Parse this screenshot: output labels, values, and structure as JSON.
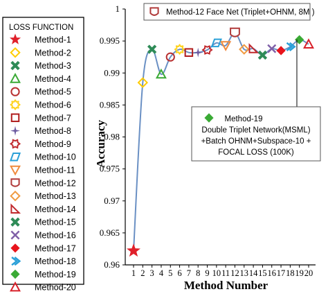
{
  "chart_data": {
    "type": "line",
    "title": "",
    "xlabel": "Method Number",
    "ylabel": "Accuracy",
    "ylim": [
      0.96,
      1.0
    ],
    "yticks": [
      "0.96",
      "0.965",
      "0.97",
      "0.975",
      "0.98",
      "0.985",
      "0.99",
      "0.995",
      "1"
    ],
    "x": [
      "1",
      "2",
      "3",
      "4",
      "5",
      "6",
      "7",
      "8",
      "9",
      "10",
      "11",
      "12",
      "13",
      "14",
      "15",
      "16",
      "17",
      "18",
      "19",
      "20"
    ],
    "values": [
      0.9622,
      0.9885,
      0.9937,
      0.9898,
      0.9925,
      0.9937,
      0.9932,
      0.9932,
      0.9936,
      0.9947,
      0.9943,
      0.9963,
      0.9937,
      0.9938,
      0.9928,
      0.9938,
      0.9935,
      0.9941,
      0.9952,
      0.9945
    ],
    "grid": false,
    "line_color": "#6a90c4",
    "legend": {
      "title": "LOSS  FUNCTION",
      "placement": "left",
      "entries": [
        {
          "label": "Method-1",
          "marker": "star",
          "color": "#e0202a"
        },
        {
          "label": "Method-2",
          "marker": "diamond-open",
          "color": "#ffcc00"
        },
        {
          "label": "Method-3",
          "marker": "x-thick",
          "color": "#2e8b57"
        },
        {
          "label": "Method-4",
          "marker": "triangle-open",
          "color": "#3aaa35"
        },
        {
          "label": "Method-5",
          "marker": "circle-open",
          "color": "#b83030"
        },
        {
          "label": "Method-6",
          "marker": "flower-open",
          "color": "#ffd320"
        },
        {
          "label": "Method-7",
          "marker": "square-open",
          "color": "#b01c1c"
        },
        {
          "label": "Method-8",
          "marker": "star4",
          "color": "#6b5aa0"
        },
        {
          "label": "Method-9",
          "marker": "gear-open",
          "color": "#c0282c"
        },
        {
          "label": "Method-10",
          "marker": "para-open",
          "color": "#2aa0d8"
        },
        {
          "label": "Method-11",
          "marker": "tri-down-open",
          "color": "#f08a3c"
        },
        {
          "label": "Method-12",
          "marker": "cup-open",
          "color": "#b03a3a"
        },
        {
          "label": "Method-13",
          "marker": "diamond-open",
          "color": "#f09a40"
        },
        {
          "label": "Method-14",
          "marker": "right-tri-open",
          "color": "#c0282c"
        },
        {
          "label": "Method-15",
          "marker": "x-thick",
          "color": "#2e8b57"
        },
        {
          "label": "Method-16",
          "marker": "x-thin",
          "color": "#8060a8"
        },
        {
          "label": "Method-17",
          "marker": "diamond-fill",
          "color": "#e8141c"
        },
        {
          "label": "Method-18",
          "marker": "chevron",
          "color": "#2aa0d8"
        },
        {
          "label": "Method-19",
          "marker": "diamond-fill",
          "color": "#3aaa35"
        },
        {
          "label": "Method-20",
          "marker": "triangle-open",
          "color": "#d8202a"
        }
      ]
    },
    "annotations": [
      {
        "method": "Method-12",
        "text": "Method-12 Face Net  (Triplet+OHNM, 8M )"
      },
      {
        "method": "Method-19",
        "lines": [
          "Method-19",
          "Double Triplet Network(MSML)",
          "+Batch OHNM+Subspace-10  +",
          "FOCAL LOSS  (100K)"
        ]
      }
    ]
  }
}
